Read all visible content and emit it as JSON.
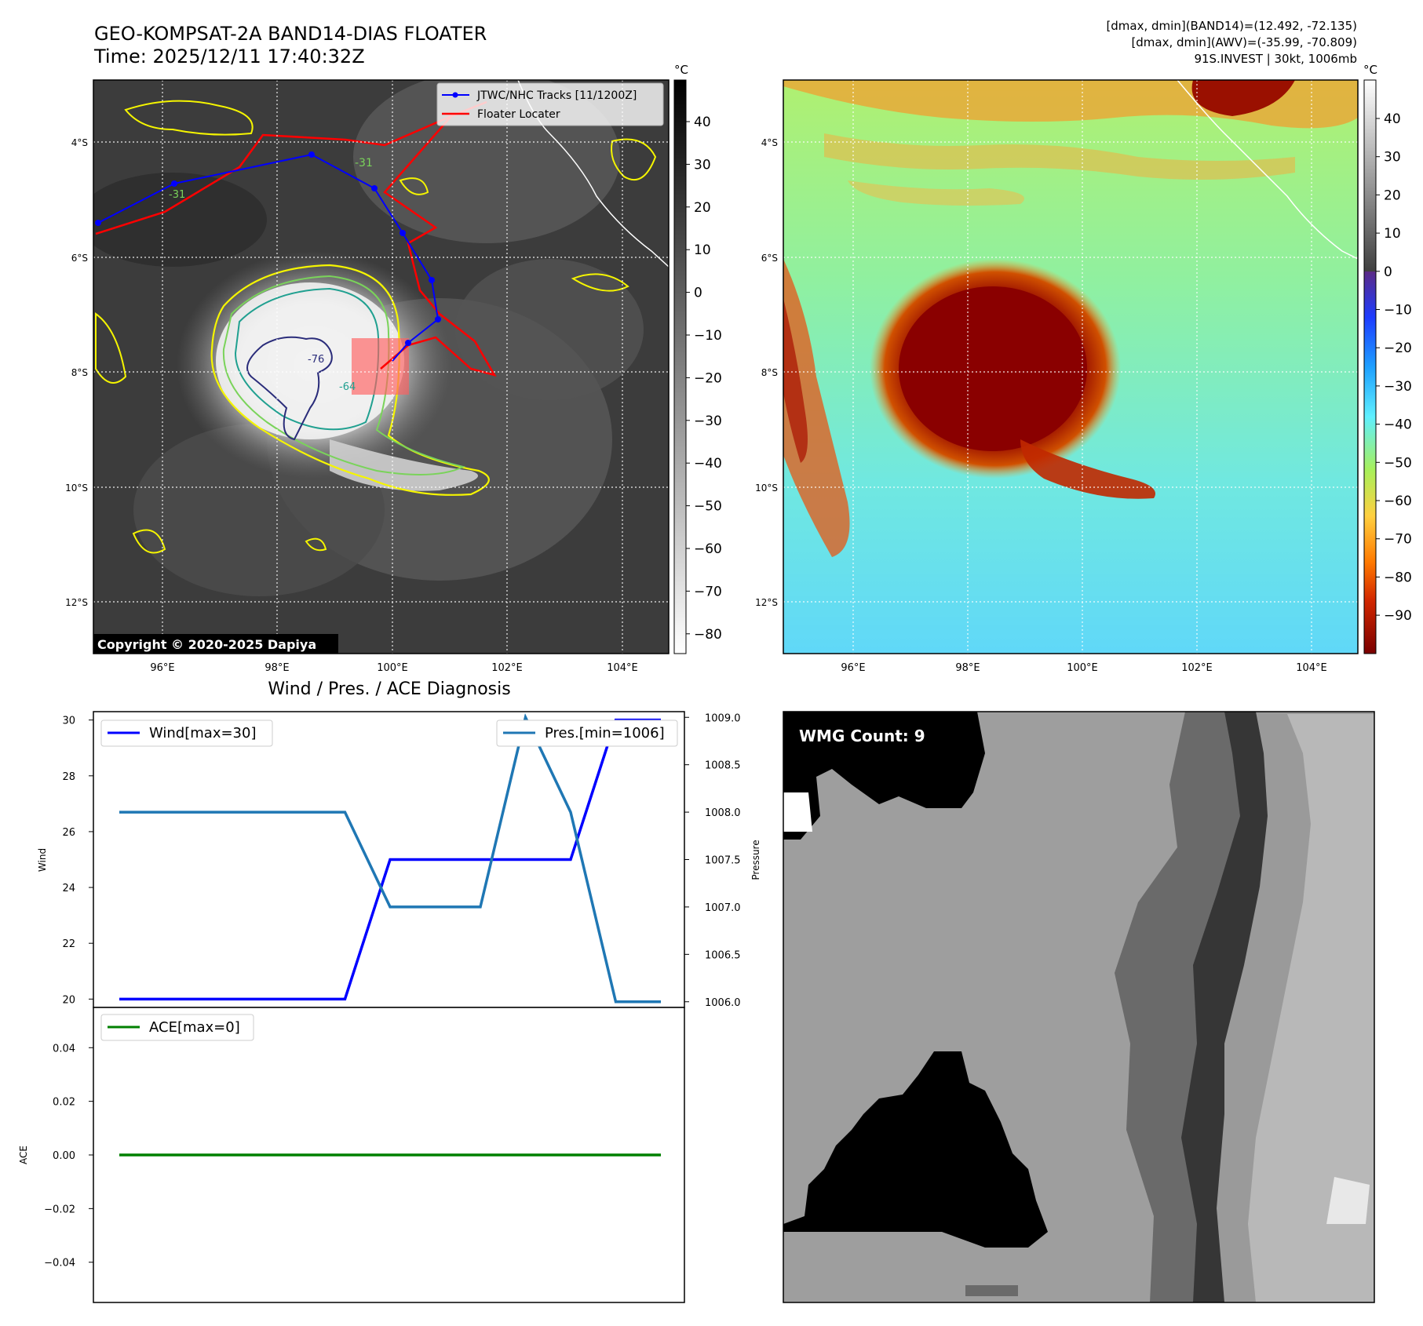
{
  "header": {
    "title_line1": "GEO-KOMPSAT-2A BAND14-DIAS FLOATER",
    "title_line2": "Time: 2025/12/11 17:40:32Z",
    "right_line1": "[dmax, dmin](BAND14)=(12.492, -72.135)",
    "right_line2": "[dmax, dmin](AWV)=(-35.99, -70.809)",
    "right_line3": "91S.INVEST | 30kt, 1006mb"
  },
  "ir_panel": {
    "legend_tracks": "JTWC/NHC Tracks [11/1200Z]",
    "legend_floater": "Floater Locater",
    "copyright": "Copyright © 2020-2025 Dapiya",
    "contour_labels": [
      "-31",
      "-31",
      "-76",
      "-64"
    ],
    "colorbar_unit": "°C",
    "colorbar_ticks": [
      "40",
      "30",
      "20",
      "10",
      "0",
      "−10",
      "−20",
      "−30",
      "−40",
      "−50",
      "−60",
      "−70",
      "−80"
    ],
    "lat_labels": [
      "4°S",
      "6°S",
      "8°S",
      "10°S",
      "12°S"
    ],
    "lon_labels": [
      "96°E",
      "98°E",
      "100°E",
      "102°E",
      "104°E"
    ],
    "track_color": "#0000ff",
    "floater_color": "#ff0000"
  },
  "awv_panel": {
    "colorbar_unit": "°C",
    "colorbar_ticks": [
      "40",
      "30",
      "20",
      "10",
      "0",
      "−10",
      "−20",
      "−30",
      "−40",
      "−50",
      "−60",
      "−70",
      "−80",
      "−90"
    ],
    "lat_labels": [
      "4°S",
      "6°S",
      "8°S",
      "10°S",
      "12°S"
    ],
    "lon_labels": [
      "96°E",
      "98°E",
      "100°E",
      "102°E",
      "104°E"
    ]
  },
  "diag_panel": {
    "title": "Wind / Pres. / ACE Diagnosis",
    "wind_axis_label": "Wind",
    "pressure_axis_label": "Pressure",
    "ace_axis_label": "ACE",
    "wind_ticks": [
      "30",
      "28",
      "26",
      "24",
      "22",
      "20"
    ],
    "pressure_ticks": [
      "1009.0",
      "1008.5",
      "1008.0",
      "1007.5",
      "1007.0",
      "1006.5",
      "1006.0"
    ],
    "ace_ticks": [
      "0.04",
      "0.02",
      "0.00",
      "−0.02",
      "−0.04"
    ]
  },
  "wmg_panel": {
    "label": "WMG Count: 9"
  },
  "chart_data": [
    {
      "type": "line",
      "title": "Wind / Pres. / ACE Diagnosis",
      "x": [
        0,
        1,
        2,
        3,
        4,
        5,
        6,
        7,
        8,
        9,
        10,
        11,
        12
      ],
      "series": [
        {
          "name": "Wind[max=30]",
          "axis": "left",
          "color": "#0000ff",
          "values": [
            20,
            20,
            20,
            20,
            20,
            20,
            25,
            25,
            25,
            25,
            25,
            30,
            30
          ]
        },
        {
          "name": "Pres.[min=1006]",
          "axis": "right",
          "color": "#1f77b4",
          "values": [
            1008,
            1008,
            1008,
            1008,
            1008,
            1008,
            1007,
            1007,
            1007,
            1009,
            1008,
            1006,
            1006
          ]
        }
      ],
      "ylabel": "Wind",
      "ylim": [
        19.7,
        30.3
      ],
      "y2label": "Pressure",
      "y2lim": [
        1005.94,
        1009.06
      ],
      "legend": [
        "upper-left",
        "upper-right"
      ]
    },
    {
      "type": "line",
      "x": [
        0,
        1,
        2,
        3,
        4,
        5,
        6,
        7,
        8,
        9,
        10,
        11,
        12
      ],
      "series": [
        {
          "name": "ACE[max=0]",
          "color": "#008000",
          "values": [
            0,
            0,
            0,
            0,
            0,
            0,
            0,
            0,
            0,
            0,
            0,
            0,
            0
          ]
        }
      ],
      "ylabel": "ACE",
      "ylim": [
        -0.055,
        0.055
      ],
      "legend": "upper-left"
    }
  ]
}
